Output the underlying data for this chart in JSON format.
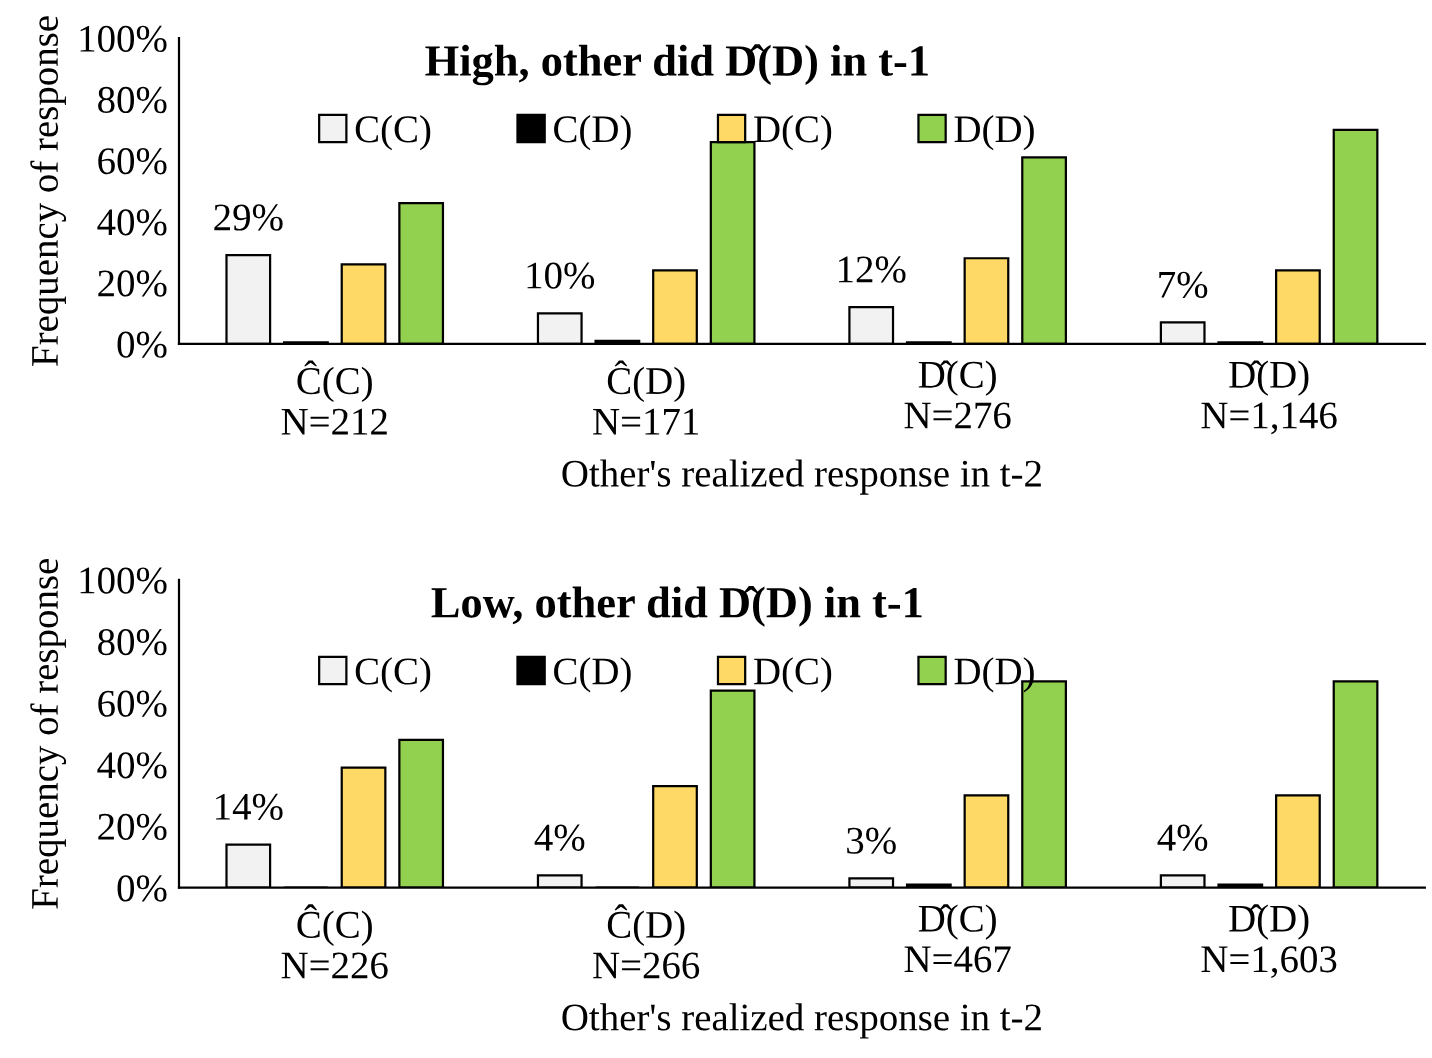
{
  "chart_data": [
    {
      "type": "bar",
      "title": "High, other did D̂(D) in t-1",
      "xlabel": "Other's realized response in t-2",
      "ylabel": "Frequency of response",
      "categories": [
        "Ĉ(C)\nN=212",
        "Ĉ(D)\nN=171",
        "D̂(C)\nN=276",
        "D̂(D)\nN=1,146"
      ],
      "series": [
        {
          "name": "C(C)",
          "color": "#f2f2f2",
          "values": [
            29,
            10,
            12,
            7
          ],
          "value_labels": [
            "29%",
            "10%",
            "12%",
            "7%"
          ]
        },
        {
          "name": "C(D)",
          "color": "#000000",
          "values": [
            0.5,
            1,
            0.5,
            0.5
          ]
        },
        {
          "name": "D(C)",
          "color": "#ffd966",
          "values": [
            26,
            24,
            28,
            24
          ]
        },
        {
          "name": "D(D)",
          "color": "#92d050",
          "values": [
            46,
            66,
            61,
            70
          ]
        }
      ],
      "ylim": [
        0,
        100
      ],
      "yticks": [
        {
          "value": 0,
          "label": "0%"
        },
        {
          "value": 20,
          "label": "20%"
        },
        {
          "value": 40,
          "label": "40%"
        },
        {
          "value": 60,
          "label": "60%"
        },
        {
          "value": 80,
          "label": "80%"
        },
        {
          "value": 100,
          "label": "100%"
        }
      ],
      "legend": "top",
      "grid": false
    },
    {
      "type": "bar",
      "title": "Low, other did D̂(D) in t-1",
      "xlabel": "Other's realized response in t-2",
      "ylabel": "Frequency of response",
      "categories": [
        "Ĉ(C)\nN=226",
        "Ĉ(D)\nN=266",
        "D̂(C)\nN=467",
        "D̂(D)\nN=1,603"
      ],
      "series": [
        {
          "name": "C(C)",
          "color": "#f2f2f2",
          "values": [
            14,
            4,
            3,
            4
          ],
          "value_labels": [
            "14%",
            "4%",
            "3%",
            "4%"
          ]
        },
        {
          "name": "C(D)",
          "color": "#000000",
          "values": [
            0,
            0,
            1,
            1
          ]
        },
        {
          "name": "D(C)",
          "color": "#ffd966",
          "values": [
            39,
            33,
            30,
            30
          ]
        },
        {
          "name": "D(D)",
          "color": "#92d050",
          "values": [
            48,
            64,
            67,
            67
          ]
        }
      ],
      "ylim": [
        0,
        100
      ],
      "yticks": [
        {
          "value": 0,
          "label": "0%"
        },
        {
          "value": 20,
          "label": "20%"
        },
        {
          "value": 40,
          "label": "40%"
        },
        {
          "value": 60,
          "label": "60%"
        },
        {
          "value": 80,
          "label": "80%"
        },
        {
          "value": 100,
          "label": "100%"
        }
      ],
      "legend": "top",
      "grid": false
    }
  ]
}
